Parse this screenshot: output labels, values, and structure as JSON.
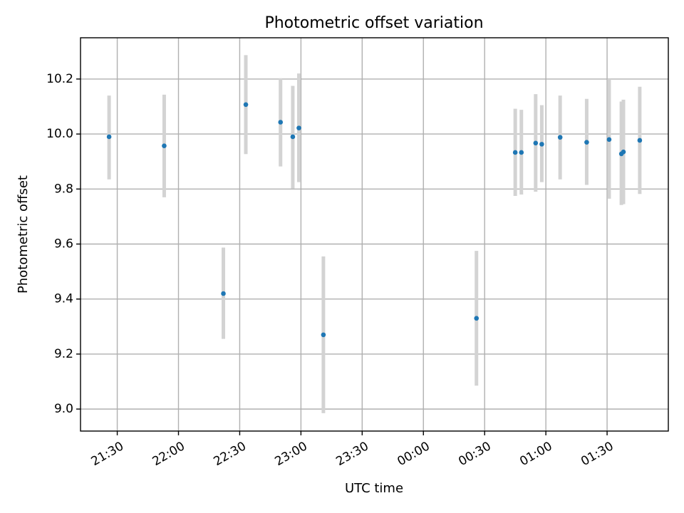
{
  "chart_data": {
    "type": "scatter",
    "title": "Photometric offset variation",
    "xlabel": "UTC time",
    "ylabel": "Photometric offset",
    "x_axis_kind": "time",
    "xlim": [
      "21:12",
      "02:00"
    ],
    "ylim": [
      8.92,
      10.35
    ],
    "grid": true,
    "point_color": "#1f77b4",
    "errorbar_color": "#d3d3d3",
    "x_ticks": [
      {
        "time": "21:30",
        "label": "21:30"
      },
      {
        "time": "22:00",
        "label": "22:00"
      },
      {
        "time": "22:30",
        "label": "22:30"
      },
      {
        "time": "23:00",
        "label": "23:00"
      },
      {
        "time": "23:30",
        "label": "23:30"
      },
      {
        "time": "00:00",
        "label": "00:00"
      },
      {
        "time": "00:30",
        "label": "00:30"
      },
      {
        "time": "01:00",
        "label": "01:00"
      },
      {
        "time": "01:30",
        "label": "01:30"
      }
    ],
    "y_ticks": [
      {
        "value": 9.0,
        "label": "9.0"
      },
      {
        "value": 9.2,
        "label": "9.2"
      },
      {
        "value": 9.4,
        "label": "9.4"
      },
      {
        "value": 9.6,
        "label": "9.6"
      },
      {
        "value": 9.8,
        "label": "9.8"
      },
      {
        "value": 10.0,
        "label": "10.0"
      },
      {
        "value": 10.2,
        "label": "10.2"
      }
    ],
    "points": [
      {
        "time": "21:26",
        "y": 9.99,
        "yerr_low": 9.835,
        "yerr_high": 10.14
      },
      {
        "time": "21:53",
        "y": 9.957,
        "yerr_low": 9.77,
        "yerr_high": 10.143
      },
      {
        "time": "22:22",
        "y": 9.42,
        "yerr_low": 9.255,
        "yerr_high": 9.587
      },
      {
        "time": "22:33",
        "y": 10.107,
        "yerr_low": 9.927,
        "yerr_high": 10.287
      },
      {
        "time": "22:50",
        "y": 10.043,
        "yerr_low": 9.882,
        "yerr_high": 10.203
      },
      {
        "time": "22:56",
        "y": 9.99,
        "yerr_low": 9.802,
        "yerr_high": 10.175
      },
      {
        "time": "22:59",
        "y": 10.022,
        "yerr_low": 9.825,
        "yerr_high": 10.22
      },
      {
        "time": "23:11",
        "y": 9.27,
        "yerr_low": 8.985,
        "yerr_high": 9.555
      },
      {
        "time": "00:26",
        "y": 9.33,
        "yerr_low": 9.085,
        "yerr_high": 9.575
      },
      {
        "time": "00:45",
        "y": 9.933,
        "yerr_low": 9.775,
        "yerr_high": 10.092
      },
      {
        "time": "00:48",
        "y": 9.933,
        "yerr_low": 9.78,
        "yerr_high": 10.088
      },
      {
        "time": "00:55",
        "y": 9.967,
        "yerr_low": 9.79,
        "yerr_high": 10.145
      },
      {
        "time": "00:58",
        "y": 9.963,
        "yerr_low": 9.825,
        "yerr_high": 10.105
      },
      {
        "time": "01:07",
        "y": 9.988,
        "yerr_low": 9.835,
        "yerr_high": 10.14
      },
      {
        "time": "01:20",
        "y": 9.97,
        "yerr_low": 9.815,
        "yerr_high": 10.128
      },
      {
        "time": "01:31",
        "y": 9.98,
        "yerr_low": 9.765,
        "yerr_high": 10.2
      },
      {
        "time": "01:37",
        "y": 9.928,
        "yerr_low": 9.742,
        "yerr_high": 10.118
      },
      {
        "time": "01:38",
        "y": 9.935,
        "yerr_low": 9.745,
        "yerr_high": 10.125
      },
      {
        "time": "01:46",
        "y": 9.977,
        "yerr_low": 9.782,
        "yerr_high": 10.172
      }
    ]
  }
}
